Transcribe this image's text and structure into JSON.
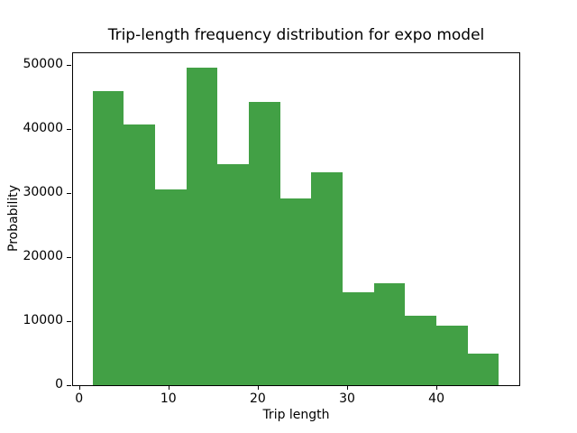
{
  "chart_data": {
    "type": "bar",
    "subtype": "histogram",
    "title": "Trip-length frequency distribution for expo model",
    "xlabel": "Trip length",
    "ylabel": "Probability",
    "bar_color": "#42a045",
    "background_color": "#ffffff",
    "axis_color": "#000000",
    "bin_edges": [
      1.5,
      5,
      8.5,
      12,
      15.5,
      19,
      22.5,
      26,
      29.5,
      33,
      36.5,
      40,
      43.5,
      47
    ],
    "values": [
      45900,
      40700,
      30600,
      49600,
      34500,
      44300,
      29200,
      33200,
      14500,
      16000,
      10900,
      9300,
      4900
    ],
    "x_ticks": [
      0,
      10,
      20,
      30,
      40
    ],
    "y_ticks": [
      0,
      10000,
      20000,
      30000,
      40000,
      50000
    ],
    "xlim": [
      -0.775,
      49.275
    ],
    "ylim": [
      0,
      52000
    ],
    "grid": false,
    "legend": null
  }
}
